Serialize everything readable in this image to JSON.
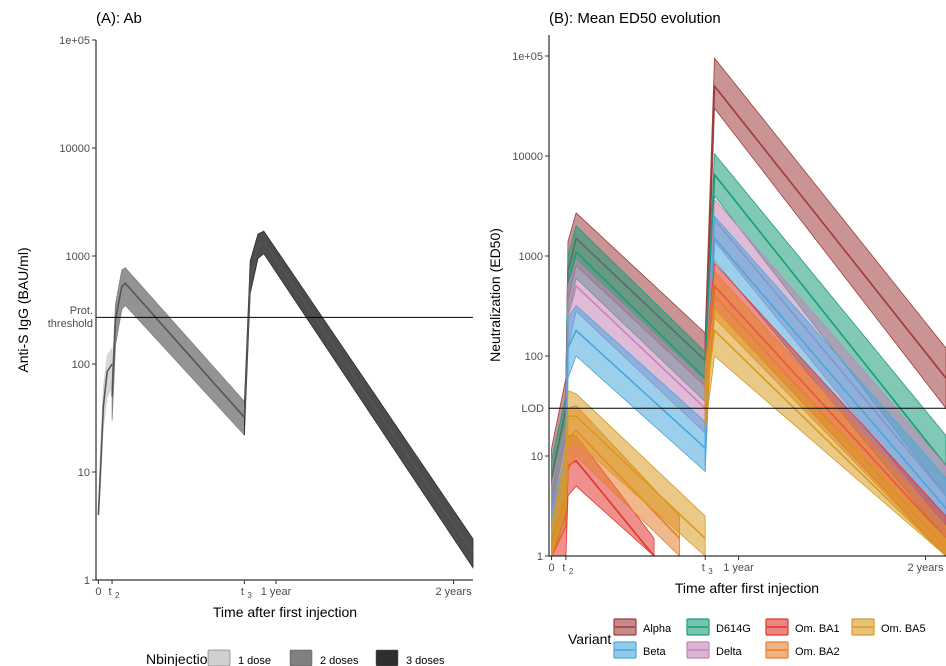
{
  "panel_a": {
    "title": "(A): Ab",
    "ylabel": "Anti-S IgG (BAU/ml)",
    "xlabel": "Time  after first injection",
    "threshold_label_line1": "Prot.",
    "threshold_label_line2": "threshold",
    "legend_title": "Nbinjections",
    "legend_items": [
      "1 dose",
      "2 doses",
      "3 doses"
    ]
  },
  "panel_b": {
    "title": "(B): Mean ED50 evolution",
    "ylabel": "Neutralization (ED50)",
    "xlabel": "Time  after first injection",
    "lod_label": "LOD",
    "legend_title": "Variant",
    "legend_items": [
      "Alpha",
      "D614G",
      "Om. BA1",
      "Om. BA5",
      "Beta",
      "Delta",
      "Om. BA2"
    ]
  },
  "x_tick_labels": {
    "t0": "0",
    "t2_base": "t",
    "t2_sub": "2",
    "t3_base": "t",
    "t3_sub": "3",
    "year1": "1 year",
    "year2": "2 years"
  },
  "colors": {
    "1 dose": "#d0d0d0",
    "2 doses": "#808080",
    "3 doses": "#2e2e2e",
    "Alpha": "#9e3c3c",
    "D614G": "#1a9c7a",
    "Om. BA1": "#e0352b",
    "Om. BA5": "#d99a22",
    "Beta": "#4aa7dc",
    "Delta": "#c783b8",
    "Om. BA2": "#e57f2c"
  },
  "chart_data": [
    {
      "type": "area",
      "title": "(A): Ab",
      "xlabel": "Time  after first injection",
      "ylabel": "Anti-S IgG (BAU/ml)",
      "y_scale": "log",
      "ylim": [
        1,
        100000
      ],
      "y_ticks": [
        "1",
        "10",
        "100",
        "1000",
        "10000",
        "1e+05"
      ],
      "x_unit": "days",
      "x_ticks_days": [
        0,
        28,
        300,
        365,
        730
      ],
      "x_tick_labels": [
        "0",
        "t2",
        "t3",
        "1 year",
        "2 years"
      ],
      "xlim_days": [
        -5,
        770
      ],
      "reference_line": {
        "label": "Prot. threshold",
        "y": 270
      },
      "series": [
        {
          "name": "1 dose",
          "points": [
            [
              0,
              4,
              4,
              4
            ],
            [
              4,
              10,
              7,
              15
            ],
            [
              10,
              40,
              25,
              60
            ],
            [
              18,
              85,
              50,
              120
            ],
            [
              28,
              100,
              60,
              140
            ]
          ]
        },
        {
          "name": "2 doses",
          "points": [
            [
              28,
              50,
              30,
              70
            ],
            [
              35,
              260,
              150,
              360
            ],
            [
              48,
              520,
              320,
              740
            ],
            [
              55,
              560,
              350,
              780
            ],
            [
              300,
              32,
              22,
              45
            ]
          ]
        },
        {
          "name": "3 doses",
          "points": [
            [
              300,
              32,
              22,
              45
            ],
            [
              312,
              600,
              450,
              900
            ],
            [
              328,
              1250,
              950,
              1600
            ],
            [
              340,
              1350,
              1050,
              1700
            ],
            [
              770,
              1.8,
              1.3,
              2.4
            ]
          ]
        }
      ],
      "legend": {
        "title": "Nbinjections",
        "position": "bottom"
      }
    },
    {
      "type": "area",
      "title": "(B): Mean ED50 evolution",
      "xlabel": "Time  after first injection",
      "ylabel": "Neutralization (ED50)",
      "y_scale": "log",
      "ylim": [
        1,
        150000
      ],
      "y_ticks": [
        "1",
        "10",
        "100",
        "1000",
        "10000",
        "1e+05"
      ],
      "x_unit": "days",
      "x_ticks_days": [
        0,
        28,
        300,
        365,
        730
      ],
      "x_tick_labels": [
        "0",
        "t2",
        "t3",
        "1 year",
        "2 years"
      ],
      "xlim_days": [
        -5,
        770
      ],
      "reference_line": {
        "label": "LOD",
        "y": 30
      },
      "series": [
        {
          "name": "Alpha",
          "segments": [
            [
              [
                0,
                6,
                3,
                12
              ],
              [
                28,
                30,
                15,
                60
              ],
              [
                32,
                700,
                350,
                1400
              ],
              [
                48,
                1500,
                800,
                2700
              ],
              [
                300,
                90,
                50,
                170
              ]
            ],
            [
              [
                300,
                90,
                50,
                170
              ],
              [
                318,
                50000,
                30000,
                95000
              ],
              [
                770,
                60,
                30,
                120
              ]
            ]
          ]
        },
        {
          "name": "D614G",
          "segments": [
            [
              [
                0,
                4,
                2,
                9
              ],
              [
                28,
                20,
                10,
                40
              ],
              [
                32,
                500,
                250,
                1000
              ],
              [
                48,
                1100,
                600,
                2000
              ],
              [
                300,
                60,
                35,
                110
              ]
            ],
            [
              [
                300,
                60,
                35,
                110
              ],
              [
                318,
                6500,
                4000,
                10500
              ],
              [
                770,
                8,
                4,
                16
              ]
            ]
          ]
        },
        {
          "name": "Delta",
          "segments": [
            [
              [
                0,
                2.5,
                1,
                5
              ],
              [
                28,
                10,
                5,
                20
              ],
              [
                32,
                250,
                120,
                500
              ],
              [
                48,
                500,
                280,
                900
              ],
              [
                300,
                30,
                17,
                55
              ]
            ],
            [
              [
                300,
                30,
                17,
                55
              ],
              [
                318,
                2300,
                1400,
                3700
              ],
              [
                770,
                4,
                2,
                8
              ]
            ]
          ]
        },
        {
          "name": "Beta",
          "segments": [
            [
              [
                0,
                1.5,
                1,
                3
              ],
              [
                28,
                5,
                2.5,
                10
              ],
              [
                32,
                120,
                60,
                240
              ],
              [
                48,
                180,
                100,
                320
              ],
              [
                300,
                12,
                7,
                22
              ]
            ],
            [
              [
                300,
                12,
                7,
                22
              ],
              [
                318,
                1500,
                900,
                2500
              ],
              [
                770,
                3,
                1.5,
                6
              ]
            ]
          ]
        },
        {
          "name": "Om. BA1",
          "segments": [
            [
              [
                0,
                1,
                1,
                1.5
              ],
              [
                28,
                2,
                1,
                4
              ],
              [
                32,
                8,
                4,
                16
              ],
              [
                48,
                9,
                5,
                16
              ],
              [
                200,
                1,
                1,
                1.5
              ]
            ],
            [
              [
                300,
                40,
                20,
                80
              ],
              [
                318,
                500,
                300,
                850
              ],
              [
                770,
                1.5,
                1,
                2.5
              ]
            ]
          ]
        },
        {
          "name": "Om. BA2",
          "segments": [
            [
              [
                0,
                1,
                1,
                2
              ],
              [
                28,
                4,
                2,
                8
              ],
              [
                32,
                15,
                7,
                30
              ],
              [
                48,
                18,
                10,
                32
              ],
              [
                250,
                1.5,
                1,
                2.5
              ]
            ],
            [
              [
                300,
                40,
                20,
                80
              ],
              [
                318,
                400,
                240,
                700
              ],
              [
                770,
                1.2,
                1,
                2
              ]
            ]
          ]
        },
        {
          "name": "Om. BA5",
          "segments": [
            [
              [
                0,
                1,
                1,
                2
              ],
              [
                28,
                6,
                3,
                12
              ],
              [
                32,
                25,
                12,
                45
              ],
              [
                48,
                25,
                14,
                42
              ],
              [
                300,
                1.5,
                1,
                2.5
              ]
            ],
            [
              [
                300,
                35,
                18,
                70
              ],
              [
                318,
                180,
                100,
                300
              ],
              [
                770,
                1,
                1,
                1.5
              ]
            ]
          ]
        }
      ],
      "legend": {
        "title": "Variant",
        "position": "bottom"
      }
    }
  ]
}
